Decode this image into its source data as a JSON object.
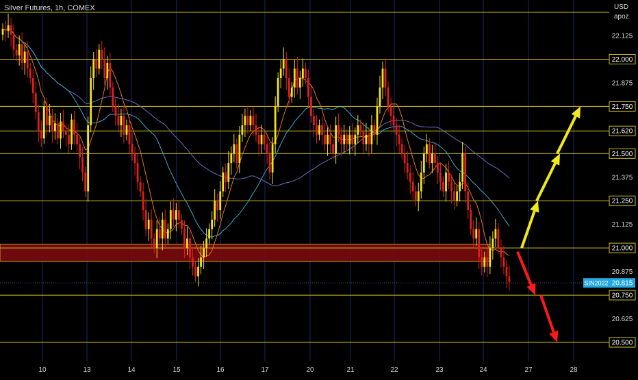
{
  "header": {
    "title": "Silver Futures, 1h, COMEX"
  },
  "axis": {
    "currency": "USD",
    "currency_sub": "apoz"
  },
  "colors": {
    "background": "#000000",
    "level_line": "#d4c21c",
    "zone_fill": "#7a0a10",
    "zone_border": "#c9a227",
    "candle_up": "#f2e21a",
    "candle_down": "#e0201a",
    "ma_fast": "#e37620",
    "ma_slow_1": "#3aa9d8",
    "ma_slow_2": "#6b6fc8",
    "arrow_up": "#f2ea17",
    "arrow_down": "#ff1a1a",
    "grid_v": "#1b2a66",
    "axis_text": "#d8d8d8",
    "price_badge": "#22a7e0"
  },
  "chart_data": {
    "type": "candlestick",
    "title": "Silver Futures, 1h, COMEX",
    "y_unit": "USD",
    "ylim": [
      20.35,
      22.3
    ],
    "x_ticks": [
      "10",
      "13",
      "14",
      "15",
      "16",
      "17",
      "20",
      "21",
      "22",
      "23",
      "24",
      "27",
      "28"
    ],
    "y_ticks": [
      "22.125",
      "21.875",
      "21.375",
      "21.125",
      "20.875",
      "20.625"
    ],
    "levels": [
      22.0,
      21.75,
      21.62,
      21.5,
      21.25,
      21.0,
      20.75,
      20.5
    ],
    "level_labels": [
      "22.000",
      "21.750",
      "21.620",
      "21.500",
      "21.250",
      "21.000",
      "20.750",
      "20.500"
    ],
    "resistance_zone": {
      "from_date": "12",
      "to_date": "23",
      "low": 21.95,
      "high": 22.05
    },
    "support_zone": {
      "from_date": "9",
      "to_date": "24",
      "low": 20.93,
      "high": 21.02
    },
    "last_price": {
      "symbol": "SIN2022",
      "value": 20.815,
      "label": "20.815"
    },
    "closes": [
      22.16,
      22.15,
      22.18,
      22.13,
      22.05,
      22.02,
      22.08,
      21.98,
      22.04,
      21.95,
      21.9,
      21.82,
      21.72,
      21.62,
      21.58,
      21.75,
      21.65,
      21.7,
      21.62,
      21.66,
      21.58,
      21.67,
      21.62,
      21.6,
      21.55,
      21.68,
      21.6,
      21.55,
      21.48,
      21.4,
      21.3,
      21.65,
      21.9,
      22.0,
      21.95,
      22.05,
      22.0,
      21.9,
      21.98,
      21.85,
      21.75,
      21.7,
      21.65,
      21.7,
      21.6,
      21.65,
      21.55,
      21.5,
      21.45,
      21.35,
      21.3,
      21.2,
      21.1,
      21.15,
      21.05,
      21.0,
      21.1,
      21.05,
      21.15,
      21.05,
      21.1,
      21.2,
      21.15,
      21.2,
      21.15,
      21.1,
      21.0,
      21.05,
      20.95,
      20.9,
      20.85,
      20.9,
      20.95,
      21.0,
      21.05,
      21.1,
      21.15,
      21.25,
      21.2,
      21.3,
      21.4,
      21.35,
      21.45,
      21.5,
      21.55,
      21.45,
      21.6,
      21.65,
      21.7,
      21.65,
      21.7,
      21.65,
      21.6,
      21.55,
      21.6,
      21.55,
      21.5,
      21.4,
      21.55,
      21.75,
      21.9,
      21.95,
      22.0,
      21.9,
      21.8,
      21.85,
      21.95,
      21.85,
      21.9,
      21.95,
      21.9,
      21.8,
      21.7,
      21.65,
      21.6,
      21.65,
      21.6,
      21.55,
      21.6,
      21.55,
      21.5,
      21.65,
      21.6,
      21.55,
      21.6,
      21.55,
      21.6,
      21.55,
      21.6,
      21.65,
      21.62,
      21.55,
      21.6,
      21.55,
      21.65,
      21.6,
      21.75,
      21.85,
      21.95,
      21.85,
      21.75,
      21.7,
      21.65,
      21.6,
      21.55,
      21.5,
      21.45,
      21.4,
      21.35,
      21.3,
      21.25,
      21.3,
      21.4,
      21.5,
      21.55,
      21.45,
      21.5,
      21.45,
      21.4,
      21.35,
      21.3,
      21.4,
      21.35,
      21.3,
      21.25,
      21.3,
      21.35,
      21.5,
      21.3,
      21.2,
      21.1,
      21.05,
      21.1,
      20.95,
      20.9,
      20.95,
      20.9,
      21.0,
      21.05,
      21.1,
      21.0,
      20.95,
      20.9,
      20.85,
      20.82
    ]
  },
  "projection_arrows": [
    {
      "direction": "up",
      "from_date": "24",
      "from_price": 21.0,
      "to_date": "27",
      "to_price": 21.25
    },
    {
      "direction": "up",
      "from_date": "27",
      "from_price": 21.25,
      "to_date": "27",
      "to_price": 21.5
    },
    {
      "direction": "up",
      "from_date": "27",
      "from_price": 21.5,
      "to_date": "28",
      "to_price": 21.75
    },
    {
      "direction": "down",
      "from_date": "24",
      "from_price": 20.98,
      "to_date": "27",
      "to_price": 20.75
    },
    {
      "direction": "down",
      "from_date": "27",
      "from_price": 20.75,
      "to_date": "28",
      "to_price": 20.5
    }
  ]
}
